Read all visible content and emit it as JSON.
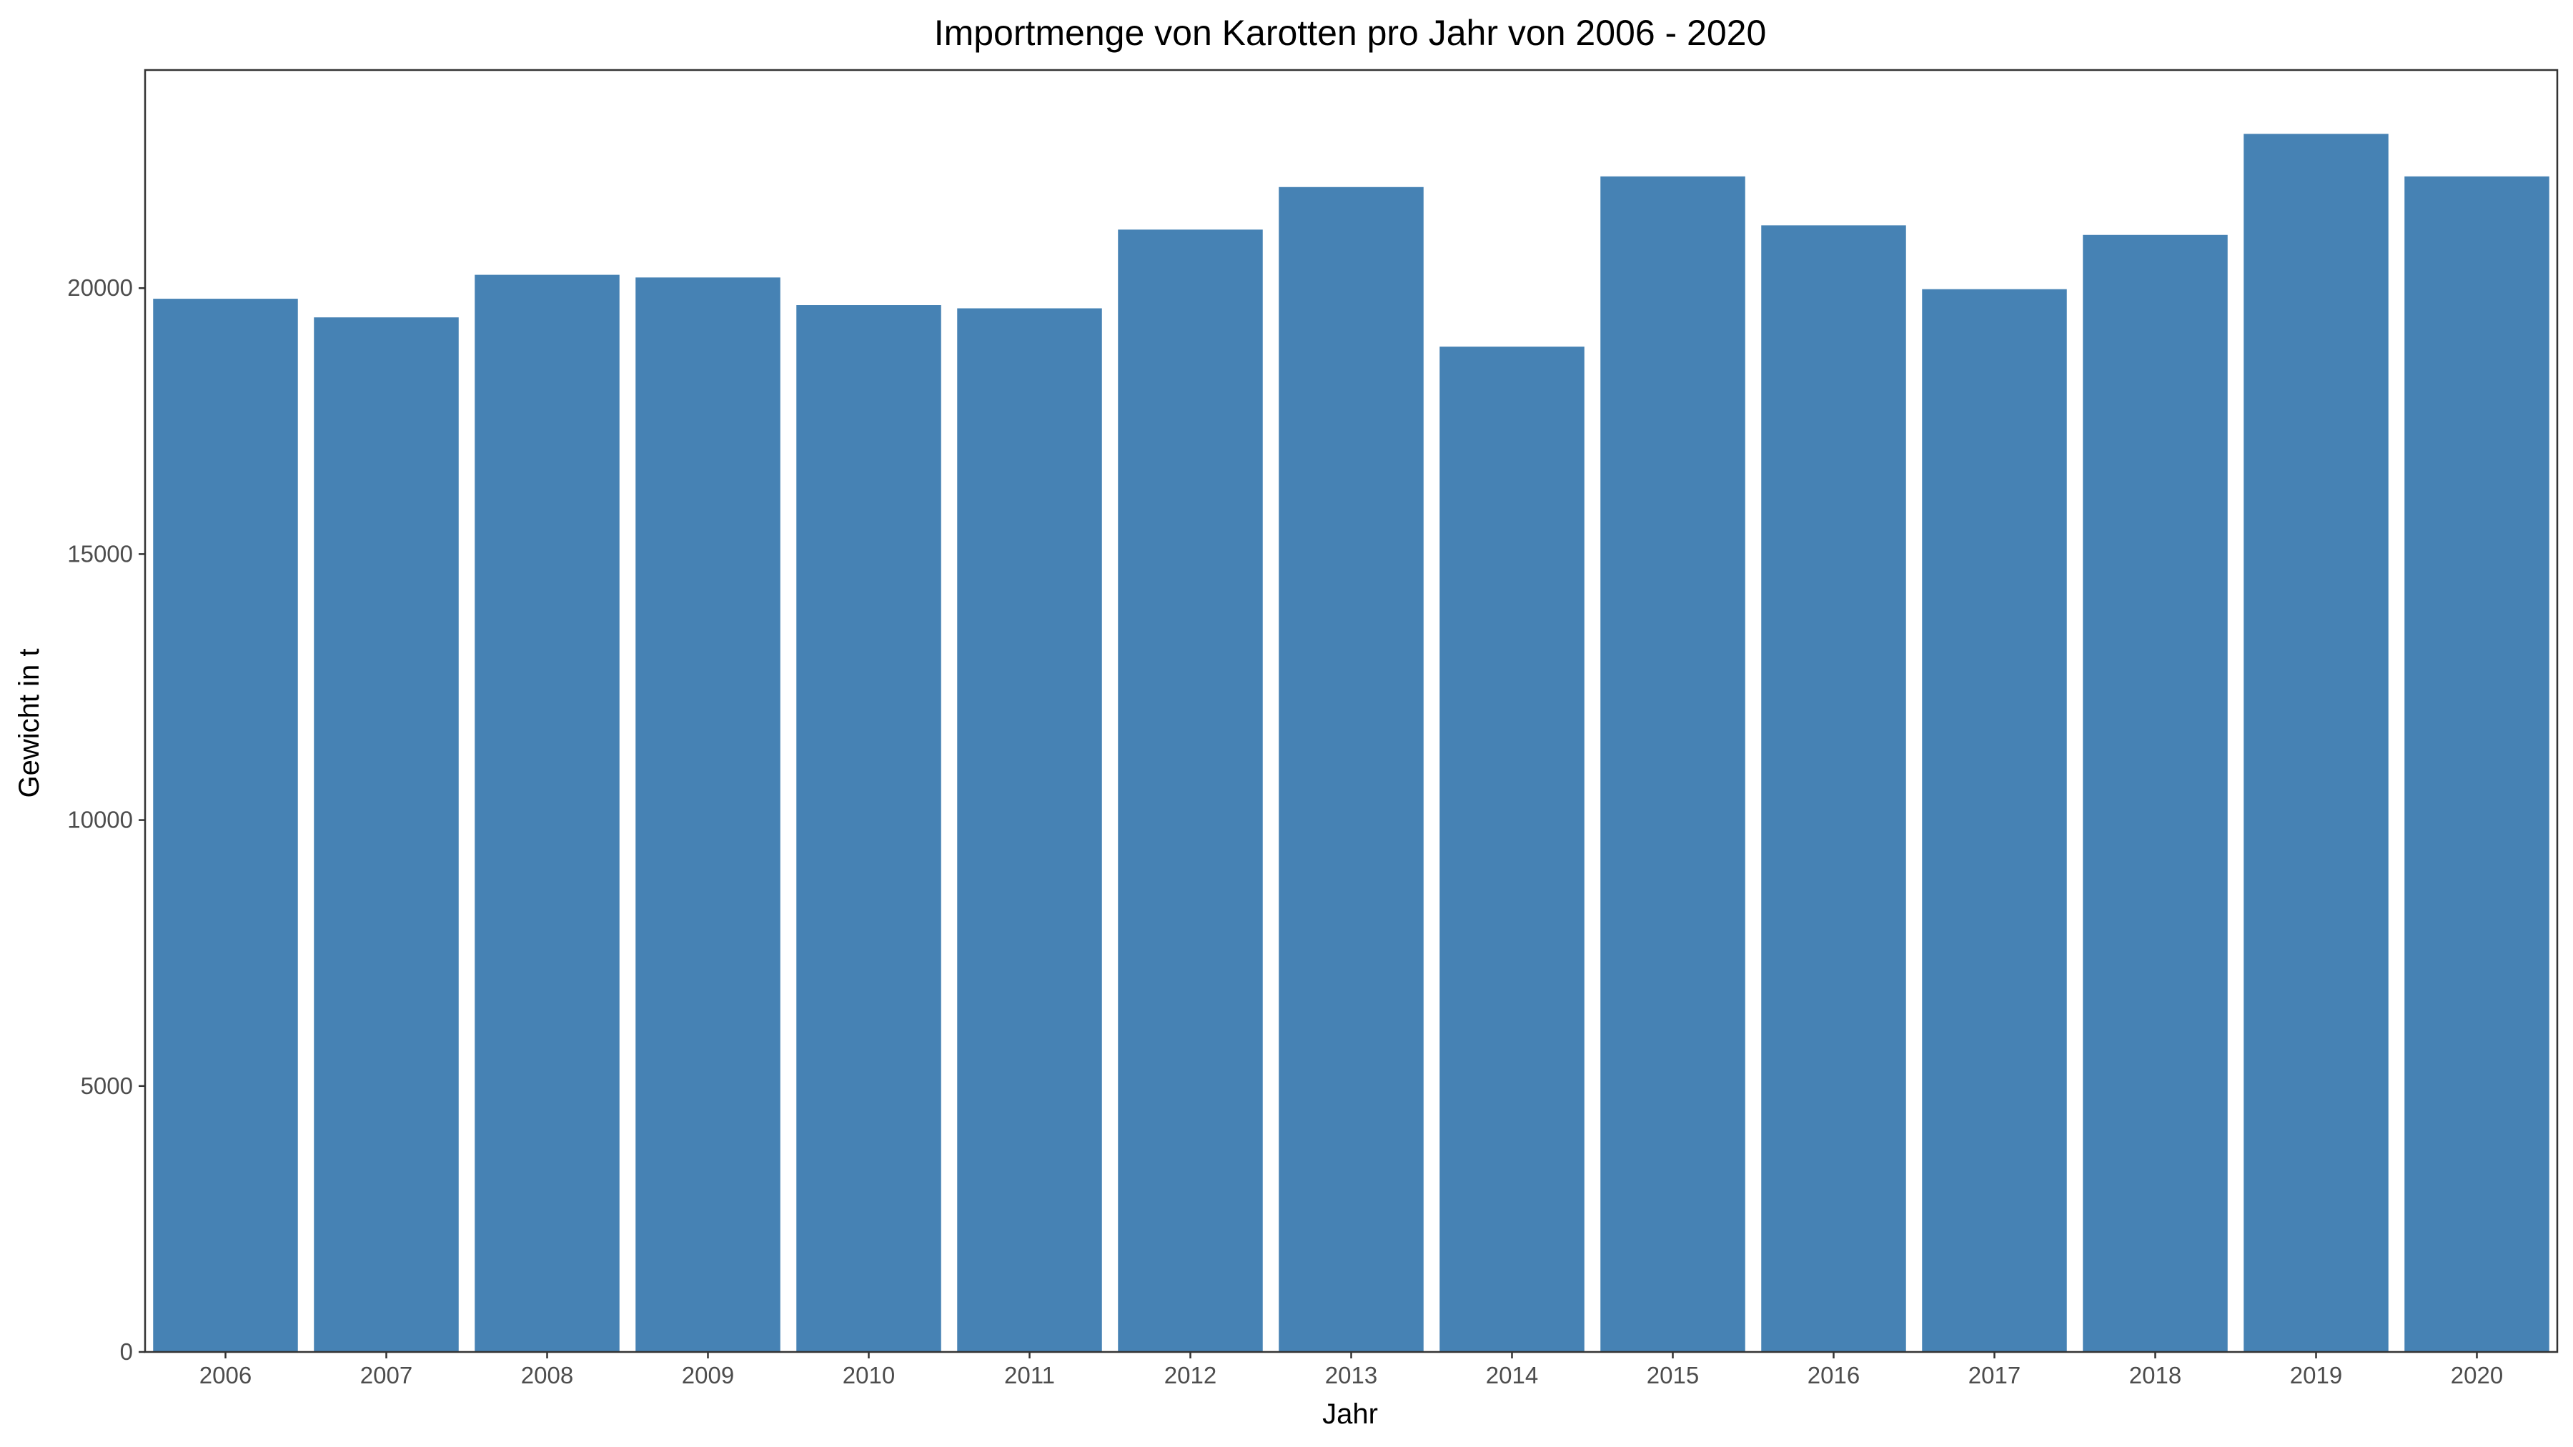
{
  "chart_data": {
    "type": "bar",
    "title": "Importmenge von Karotten pro Jahr von 2006 - 2020",
    "xlabel": "Jahr",
    "ylabel": "Gewicht in t",
    "categories": [
      "2006",
      "2007",
      "2008",
      "2009",
      "2010",
      "2011",
      "2012",
      "2013",
      "2014",
      "2015",
      "2016",
      "2017",
      "2018",
      "2019",
      "2020"
    ],
    "values": [
      19800,
      19450,
      20250,
      20200,
      19680,
      19620,
      21100,
      21900,
      18900,
      22100,
      21180,
      19980,
      21000,
      22900,
      22100
    ],
    "ylim": [
      0,
      24100
    ],
    "yticks": [
      0,
      5000,
      10000,
      15000,
      20000
    ],
    "ytick_labels": [
      "0",
      "5000",
      "10000",
      "15000",
      "20000"
    ],
    "bar_color": "#4682B4",
    "grid": false,
    "legend": "none"
  }
}
